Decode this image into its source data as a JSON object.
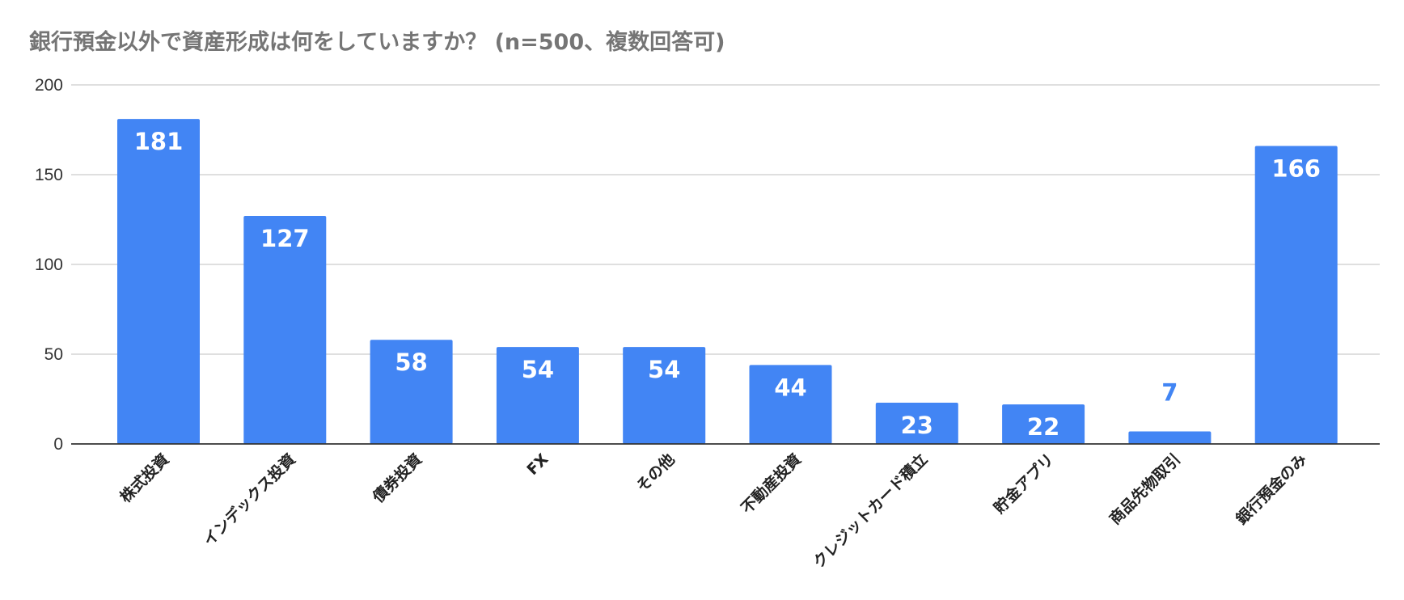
{
  "chart_data": {
    "type": "bar",
    "title": "銀行預金以外で資産形成は何をしていますか？ (n=500、複数回答可)",
    "categories": [
      "株式投資",
      "インデックス投資",
      "債券投資",
      "FX",
      "その他",
      "不動産投資",
      "クレジットカード積立",
      "貯金アプリ",
      "商品先物取引",
      "銀行預金のみ"
    ],
    "values": [
      181,
      127,
      58,
      54,
      54,
      44,
      23,
      22,
      7,
      166
    ],
    "ylim": [
      0,
      200
    ],
    "yticks": [
      0,
      50,
      100,
      150,
      200
    ],
    "xlabel": "",
    "ylabel": "",
    "grid": true,
    "legend": "none",
    "colors": {
      "bar": "#4285f4",
      "grid": "#cccccc",
      "axis": "#333333",
      "label_inside": "#ffffff",
      "label_outside": "#4285f4",
      "title": "#757575"
    }
  }
}
